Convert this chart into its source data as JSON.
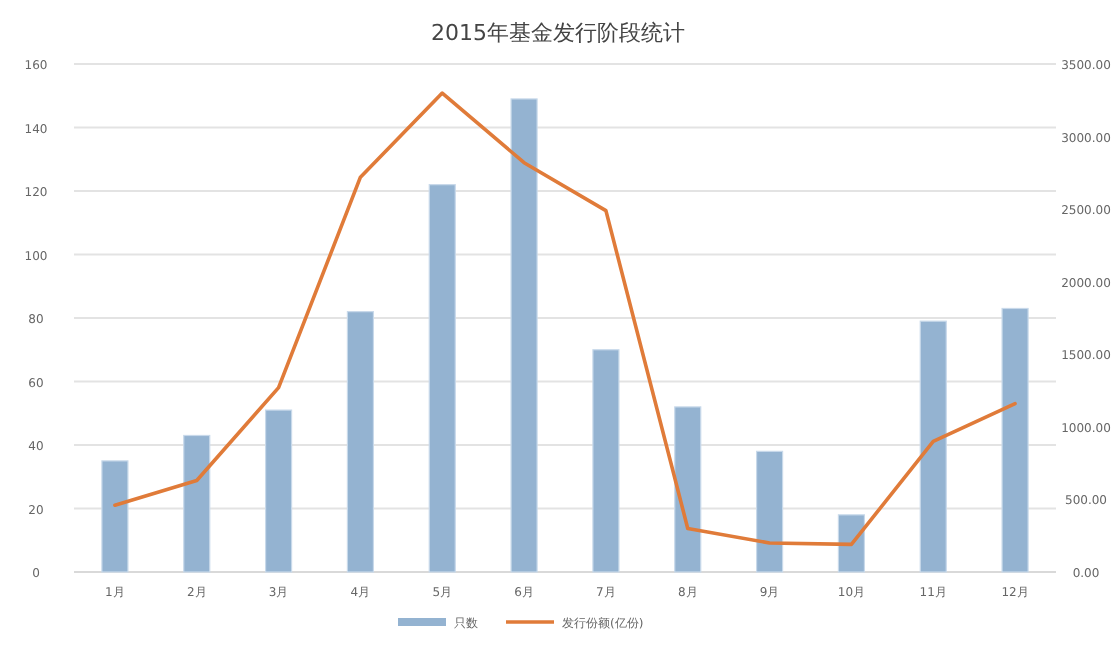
{
  "chart_data": {
    "type": "bar",
    "title": "2015年基金发行阶段统计",
    "categories": [
      "1月",
      "2月",
      "3月",
      "4月",
      "5月",
      "6月",
      "7月",
      "8月",
      "9月",
      "10月",
      "11月",
      "12月"
    ],
    "series": [
      {
        "name": "只数",
        "color": "#94b3d1",
        "values": [
          35,
          43,
          51,
          82,
          122,
          149,
          70,
          52,
          38,
          18,
          79,
          83
        ]
      },
      {
        "name": "发行份额(亿份)",
        "type": "line",
        "axis": "y2",
        "color": "#e07b39",
        "values": [
          460,
          630,
          1270,
          2720,
          3300,
          2820,
          2490,
          300,
          200,
          190,
          900,
          1160
        ]
      }
    ],
    "ylim": [
      0,
      160
    ],
    "yticks": [
      0,
      20,
      40,
      60,
      80,
      100,
      120,
      140,
      160
    ],
    "y2lim": [
      0,
      3500
    ],
    "y2ticks": [
      {
        "value": 0,
        "label": "0.00"
      },
      {
        "value": 500,
        "label": "500.00"
      },
      {
        "value": 1000,
        "label": "1000.00"
      },
      {
        "value": 1500,
        "label": "1500.00"
      },
      {
        "value": 2000,
        "label": "2000.00"
      },
      {
        "value": 2500,
        "label": "2500.00"
      },
      {
        "value": 3000,
        "label": "3000.00"
      },
      {
        "value": 3500,
        "label": "3500.00"
      }
    ],
    "grid": "y",
    "legend": "bottom",
    "line_style": "solid",
    "marker": "none"
  }
}
